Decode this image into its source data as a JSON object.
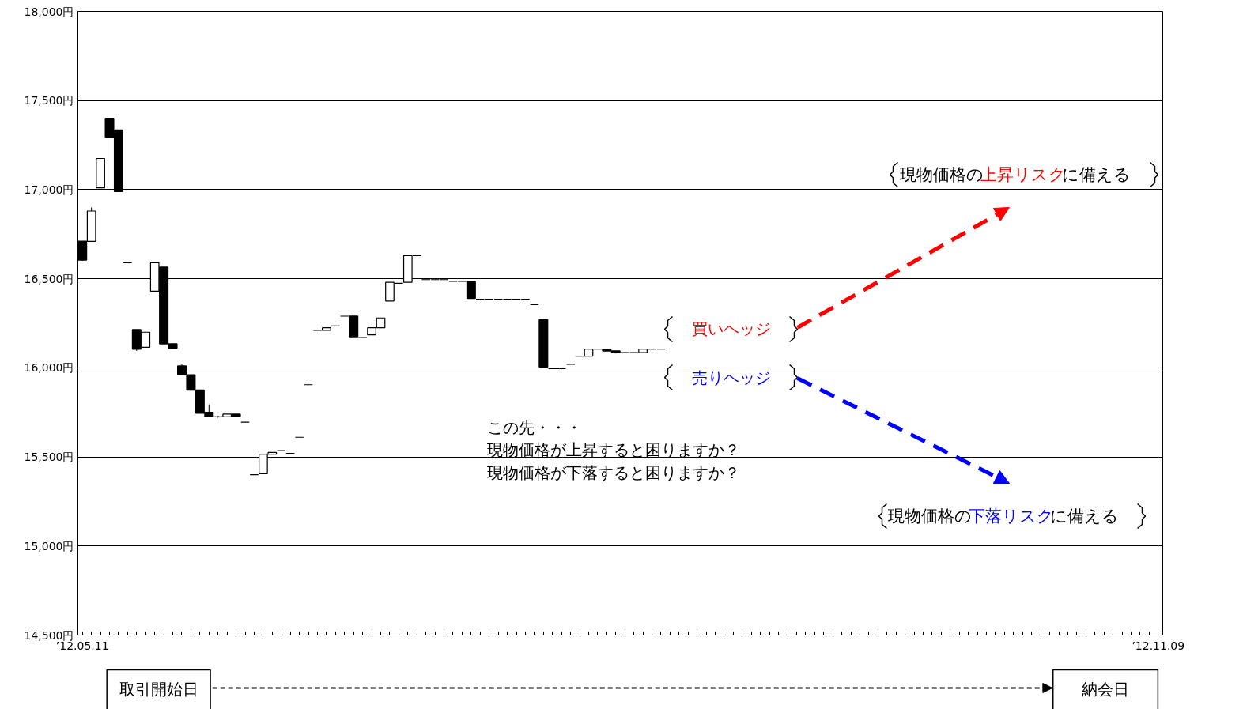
{
  "chart_data": {
    "type": "candlestick",
    "categories": [
      "’12.05.11",
      null,
      null,
      null,
      null,
      null,
      null,
      null,
      null,
      null,
      null,
      null,
      null,
      null,
      null,
      null,
      null,
      null,
      null,
      null,
      null,
      null,
      null,
      null,
      null,
      null,
      null,
      null,
      null,
      null,
      null,
      null,
      null,
      null,
      null,
      null,
      null,
      null,
      null,
      null,
      null,
      null,
      null,
      null,
      null,
      null,
      null,
      null,
      null,
      null,
      null,
      null,
      null,
      null,
      null,
      null,
      null,
      null,
      null,
      null,
      null,
      null,
      null,
      null,
      null,
      null,
      null,
      null,
      null,
      null,
      null,
      null,
      null,
      null,
      null,
      null,
      null,
      null,
      null,
      null,
      null,
      null,
      null,
      null,
      null,
      null,
      null,
      null,
      null,
      null,
      null,
      null,
      null,
      null,
      null,
      null,
      null,
      null,
      null,
      null,
      null,
      null,
      null,
      null,
      null,
      null,
      null,
      null,
      null,
      null,
      null,
      null,
      null,
      null,
      null,
      null,
      null,
      null,
      null,
      "’12.11.09"
    ],
    "ohlc": [
      [
        16710,
        16710,
        16600,
        16605
      ],
      [
        16710,
        16900,
        16710,
        16880
      ],
      [
        17010,
        17175,
        17010,
        17175
      ],
      [
        17400,
        17400,
        17295,
        17295
      ],
      [
        17335,
        17335,
        16990,
        16990
      ],
      [
        16590,
        16590,
        16590,
        16590
      ],
      [
        16215,
        16215,
        16095,
        16105
      ],
      [
        16115,
        16200,
        16115,
        16200
      ],
      [
        16430,
        16590,
        16430,
        16590
      ],
      [
        16565,
        16565,
        16135,
        16135
      ],
      [
        16135,
        16135,
        16110,
        16110
      ],
      [
        16010,
        16020,
        15960,
        15960
      ],
      [
        15960,
        15960,
        15875,
        15875
      ],
      [
        15875,
        15875,
        15745,
        15745
      ],
      [
        15750,
        15795,
        15725,
        15725
      ],
      [
        15725,
        15730,
        15720,
        15725
      ],
      [
        15725,
        15740,
        15725,
        15740
      ],
      [
        15740,
        15740,
        15725,
        15725
      ],
      [
        15695,
        15695,
        15695,
        15695
      ],
      [
        15400,
        15400,
        15400,
        15400
      ],
      [
        15405,
        15515,
        15405,
        15515
      ],
      [
        15515,
        15525,
        15515,
        15525
      ],
      [
        15535,
        15535,
        15535,
        15535
      ],
      [
        15520,
        15520,
        15520,
        15520
      ],
      [
        15610,
        15610,
        15610,
        15610
      ],
      [
        15905,
        15905,
        15905,
        15905
      ],
      [
        16210,
        16210,
        16210,
        16210
      ],
      [
        16210,
        16225,
        16210,
        16225
      ],
      [
        16235,
        16235,
        16235,
        16235
      ],
      [
        16290,
        16290,
        16290,
        16290
      ],
      [
        16290,
        16290,
        16175,
        16175
      ],
      [
        16170,
        16170,
        16170,
        16170
      ],
      [
        16185,
        16225,
        16185,
        16225
      ],
      [
        16225,
        16280,
        16225,
        16280
      ],
      [
        16375,
        16480,
        16375,
        16480
      ],
      [
        16475,
        16475,
        16475,
        16475
      ],
      [
        16480,
        16630,
        16480,
        16630
      ],
      [
        16630,
        16630,
        16630,
        16630
      ],
      [
        16495,
        16495,
        16495,
        16495
      ],
      [
        16495,
        16495,
        16495,
        16495
      ],
      [
        16495,
        16495,
        16495,
        16495
      ],
      [
        16485,
        16485,
        16485,
        16485
      ],
      [
        16485,
        16485,
        16485,
        16485
      ],
      [
        16485,
        16485,
        16390,
        16390
      ],
      [
        16385,
        16385,
        16385,
        16385
      ],
      [
        16385,
        16385,
        16385,
        16385
      ],
      [
        16385,
        16385,
        16385,
        16385
      ],
      [
        16385,
        16385,
        16385,
        16385
      ],
      [
        16385,
        16385,
        16385,
        16385
      ],
      [
        16385,
        16385,
        16385,
        16385
      ],
      [
        16355,
        16355,
        16355,
        16355
      ],
      [
        16270,
        16270,
        16005,
        16005
      ],
      [
        15995,
        15995,
        15995,
        15995
      ],
      [
        15995,
        15995,
        15995,
        15995
      ],
      [
        16020,
        16020,
        16020,
        16020
      ],
      [
        16065,
        16065,
        16065,
        16065
      ],
      [
        16065,
        16105,
        16065,
        16105
      ],
      [
        16105,
        16105,
        16105,
        16105
      ],
      [
        16105,
        16105,
        16095,
        16095
      ],
      [
        16095,
        16095,
        16080,
        16085
      ],
      [
        16085,
        16085,
        16085,
        16085
      ],
      [
        16085,
        16085,
        16085,
        16085
      ],
      [
        16085,
        16105,
        16085,
        16105
      ],
      [
        16105,
        16105,
        16105,
        16105
      ],
      [
        16105,
        16105,
        16105,
        16105
      ],
      null,
      null,
      null,
      null,
      null,
      null,
      null,
      null,
      null,
      null,
      null,
      null,
      null,
      null,
      null,
      null,
      null,
      null,
      null,
      null,
      null,
      null,
      null,
      null,
      null,
      null,
      null,
      null,
      null,
      null,
      null,
      null,
      null,
      null,
      null,
      null,
      null,
      null,
      null,
      null,
      null,
      null,
      null,
      null,
      null,
      null,
      null,
      null,
      null,
      null,
      null,
      null,
      null,
      null,
      null
    ],
    "ylim": [
      14500,
      18000
    ],
    "yticks": [
      {
        "value": 14500,
        "label": "14,500円"
      },
      {
        "value": 15000,
        "label": "15,000円"
      },
      {
        "value": 15500,
        "label": "15,500円"
      },
      {
        "value": 16000,
        "label": "16,000円"
      },
      {
        "value": 16500,
        "label": "16,500円"
      },
      {
        "value": 17000,
        "label": "17,000円"
      },
      {
        "value": 17500,
        "label": "17,500円"
      },
      {
        "value": 18000,
        "label": "18,000円"
      }
    ],
    "grid": "y",
    "annotations": [
      "この先・・・",
      "現物価格が上昇すると困りますか？",
      "現物価格が下落すると困りますか？",
      "買いヘッジ",
      "売りヘッジ",
      "現物価格の上昇リスクに備える",
      "現物価格の下落リスクに備える",
      "取引開始日",
      "納会日"
    ]
  }
}
